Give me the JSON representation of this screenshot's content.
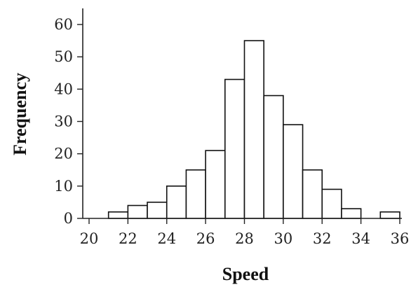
{
  "chart_data": {
    "type": "bar",
    "subtype": "histogram",
    "xlabel": "Speed",
    "ylabel": "Frequency",
    "xlim": [
      20,
      36
    ],
    "ylim": [
      0,
      65
    ],
    "x_ticks": [
      "20",
      "22",
      "24",
      "26",
      "28",
      "30",
      "32",
      "34",
      "36"
    ],
    "y_ticks": [
      "0",
      "10",
      "20",
      "30",
      "40",
      "50",
      "60"
    ],
    "bin_width": 1,
    "bins": [
      {
        "start": 21,
        "end": 22,
        "value": 2
      },
      {
        "start": 22,
        "end": 23,
        "value": 4
      },
      {
        "start": 23,
        "end": 24,
        "value": 5
      },
      {
        "start": 24,
        "end": 25,
        "value": 10
      },
      {
        "start": 25,
        "end": 26,
        "value": 15
      },
      {
        "start": 26,
        "end": 27,
        "value": 21
      },
      {
        "start": 27,
        "end": 28,
        "value": 43
      },
      {
        "start": 28,
        "end": 29,
        "value": 55
      },
      {
        "start": 29,
        "end": 30,
        "value": 38
      },
      {
        "start": 30,
        "end": 31,
        "value": 29
      },
      {
        "start": 31,
        "end": 32,
        "value": 15
      },
      {
        "start": 32,
        "end": 33,
        "value": 9
      },
      {
        "start": 33,
        "end": 34,
        "value": 3
      },
      {
        "start": 35,
        "end": 36,
        "value": 2
      }
    ],
    "grid": false,
    "colors": {
      "bar_fill": "#ffffff",
      "bar_stroke": "#111111",
      "axis": "#222222"
    }
  }
}
